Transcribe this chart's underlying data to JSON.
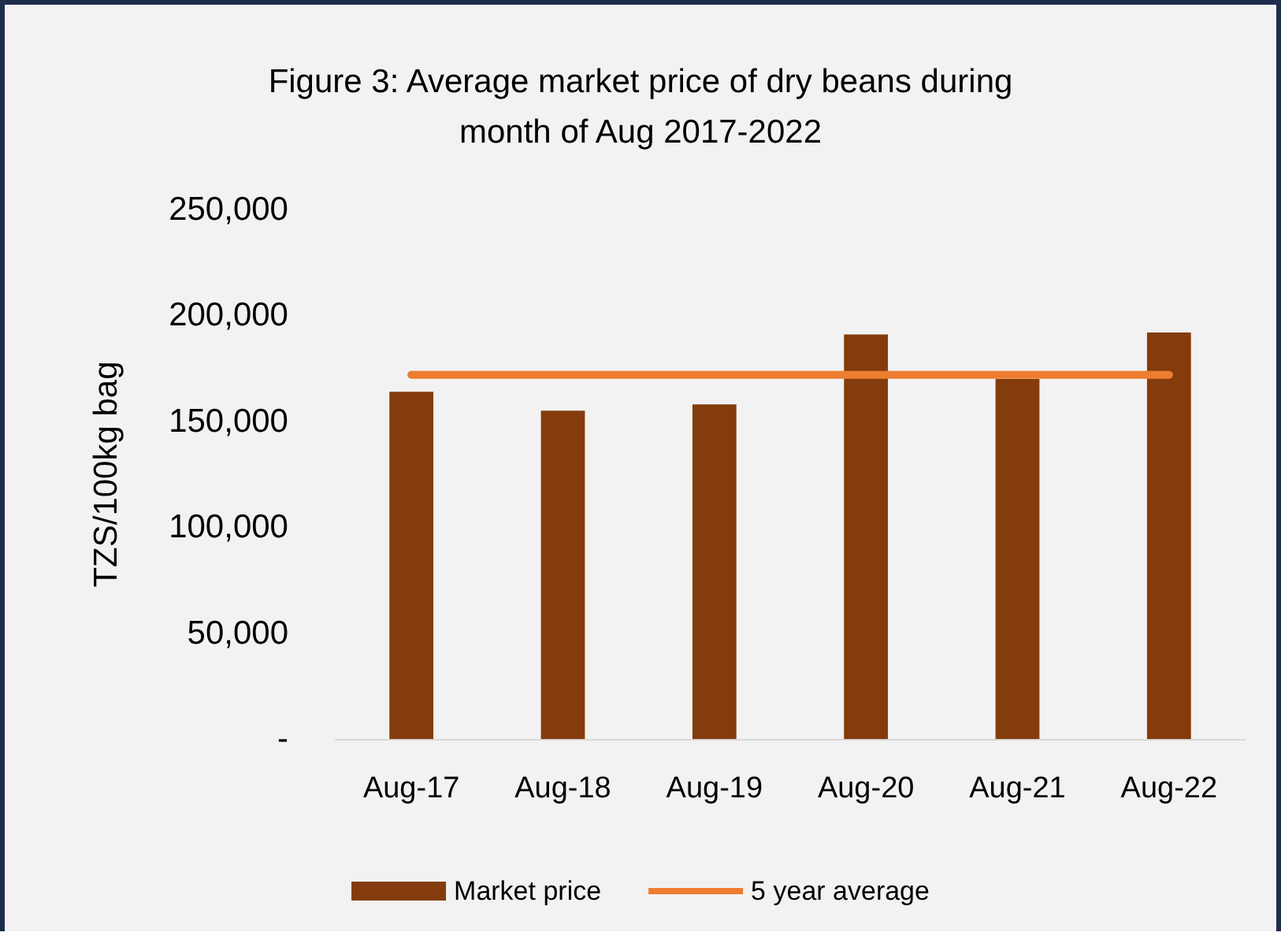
{
  "chart_data": {
    "type": "bar",
    "title": "Figure 3: Average market price of dry beans during\nmonth of Aug 2017-2022",
    "ylabel": "TZS/100kg bag",
    "categories": [
      "Aug-17",
      "Aug-18",
      "Aug-19",
      "Aug-20",
      "Aug-21",
      "Aug-22"
    ],
    "series": [
      {
        "name": "Market price",
        "color": "#843c0c",
        "values": [
          164000,
          155000,
          158000,
          191000,
          170000,
          192000
        ]
      },
      {
        "name": "5 year average",
        "type": "line",
        "color": "#ed7d31",
        "values": [
          172000,
          172000,
          172000,
          172000,
          172000,
          172000
        ]
      }
    ],
    "ylim": [
      0,
      250000
    ],
    "yticks": [
      {
        "value": 0,
        "label": "-"
      },
      {
        "value": 50000,
        "label": "50,000"
      },
      {
        "value": 100000,
        "label": "100,000"
      },
      {
        "value": 150000,
        "label": "150,000"
      },
      {
        "value": 200000,
        "label": "200,000"
      },
      {
        "value": 250000,
        "label": "250,000"
      }
    ],
    "grid": false,
    "legend": "bottom",
    "marker": "none",
    "line_style": "solid"
  }
}
